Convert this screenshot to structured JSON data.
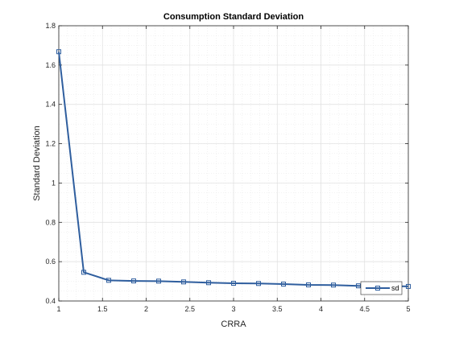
{
  "chart_data": {
    "type": "line",
    "title": "Consumption Standard Deviation",
    "xlabel": "CRRA",
    "ylabel": "Standard Deviation",
    "xlim": [
      1,
      5
    ],
    "ylim": [
      0.4,
      1.8
    ],
    "xticks": [
      1,
      1.5,
      2,
      2.5,
      3,
      3.5,
      4,
      4.5,
      5
    ],
    "yticks": [
      0.4,
      0.6,
      0.8,
      1,
      1.2,
      1.4,
      1.6,
      1.8
    ],
    "xtick_labels": [
      "1",
      "1.5",
      "2",
      "2.5",
      "3",
      "3.5",
      "4",
      "4.5",
      "5"
    ],
    "ytick_labels": [
      "0.4",
      "0.6",
      "0.8",
      "1",
      "1.2",
      "1.4",
      "1.6",
      "1.8"
    ],
    "grid": true,
    "minor_grid": true,
    "legend_position": "bottom-right",
    "series": [
      {
        "name": "sd",
        "color": "#2f5e9e",
        "marker": "square",
        "x": [
          1.0,
          1.2857,
          1.5714,
          1.8571,
          2.1429,
          2.4286,
          2.7143,
          3.0,
          3.2857,
          3.5714,
          3.8571,
          4.1429,
          4.4286,
          4.7143,
          5.0
        ],
        "y": [
          1.668,
          0.546,
          0.505,
          0.502,
          0.501,
          0.497,
          0.493,
          0.49,
          0.489,
          0.486,
          0.482,
          0.481,
          0.477,
          0.476,
          0.474
        ]
      }
    ]
  }
}
